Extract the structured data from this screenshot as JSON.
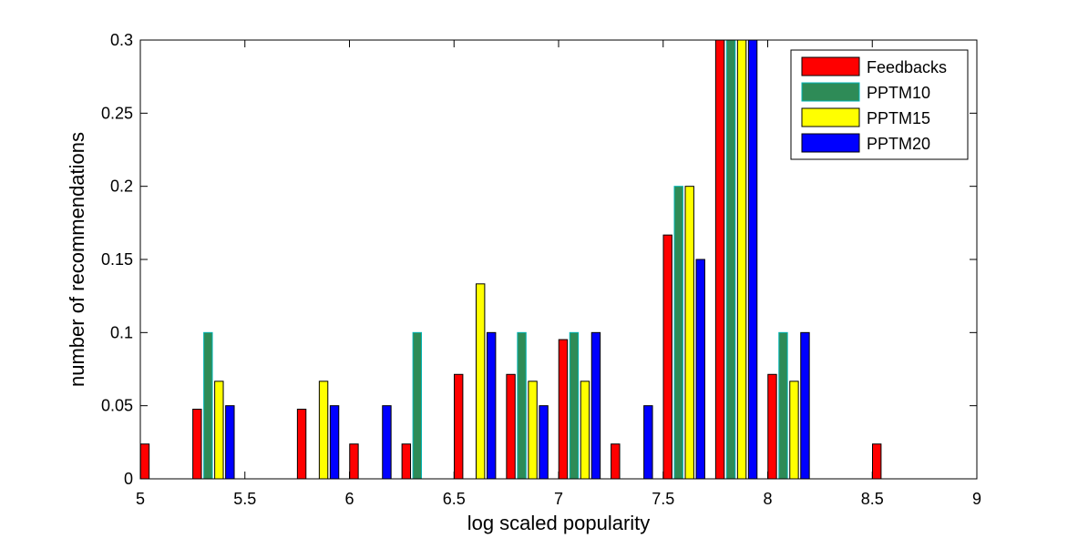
{
  "chart_data": {
    "type": "bar",
    "title": "",
    "xlabel": "log scaled popularity",
    "ylabel": "number of recommendations",
    "xlim": [
      5,
      9
    ],
    "ylim": [
      0,
      0.3
    ],
    "xticks": [
      "5",
      "5.5",
      "6",
      "6.5",
      "7",
      "7.5",
      "8",
      "8.5",
      "9"
    ],
    "yticks": [
      "0",
      "0.05",
      "0.1",
      "0.15",
      "0.2",
      "0.25",
      "0.3"
    ],
    "grid": false,
    "legend_position": "top-right",
    "bin_centers": [
      5.1,
      5.35,
      5.6,
      5.85,
      6.1,
      6.35,
      6.6,
      6.85,
      7.1,
      7.35,
      7.6,
      7.85,
      8.1,
      8.35,
      8.6,
      8.85
    ],
    "series": [
      {
        "name": "Feedbacks",
        "color": "#ff0000",
        "values": [
          0.0238,
          0.0476,
          0,
          0.0476,
          0.0238,
          0.0238,
          0.0714,
          0.0714,
          0.0952,
          0.0238,
          0.1667,
          0.3,
          0.0714,
          0,
          0.0238,
          0
        ]
      },
      {
        "name": "PPTM10",
        "color": "#2e8b57",
        "values": [
          0,
          0.1,
          0,
          0,
          0,
          0.1,
          0,
          0.1,
          0.1,
          0,
          0.2,
          0.3,
          0.1,
          0,
          0,
          0
        ]
      },
      {
        "name": "PPTM15",
        "color": "#ffff00",
        "values": [
          0,
          0.0667,
          0,
          0.0667,
          0,
          0,
          0.1333,
          0.0667,
          0.0667,
          0,
          0.2,
          0.3,
          0.0667,
          0,
          0,
          0
        ]
      },
      {
        "name": "PPTM20",
        "color": "#0000ff",
        "values": [
          0,
          0.05,
          0,
          0.05,
          0.05,
          0,
          0.1,
          0.05,
          0.1,
          0.05,
          0.15,
          0.3,
          0.1,
          0,
          0,
          0
        ]
      }
    ]
  }
}
